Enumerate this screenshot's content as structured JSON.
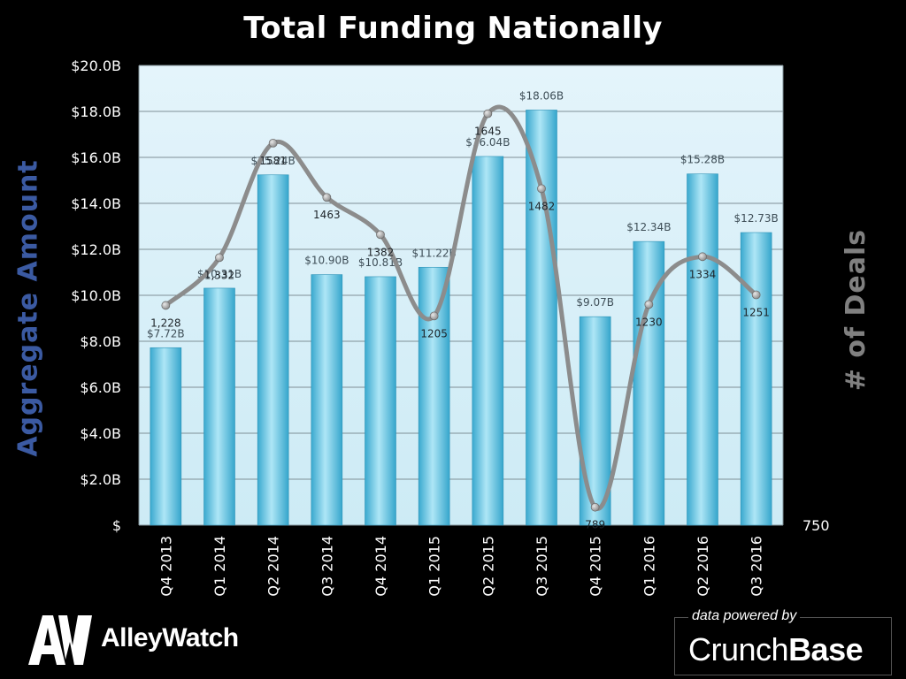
{
  "chart_data": {
    "type": "bar+line",
    "title": "Total Funding Nationally",
    "categories": [
      "Q4 2013",
      "Q1 2014",
      "Q2 2014",
      "Q3 2014",
      "Q4 2014",
      "Q1 2015",
      "Q2 2015",
      "Q3 2015",
      "Q4 2015",
      "Q1 2016",
      "Q2 2016",
      "Q3 2016"
    ],
    "ylabel": "Aggregate  Amount",
    "ylabel_right": "# of Deals",
    "ylim": [
      0,
      20
    ],
    "y_ticks": [
      "$",
      "$2.0B",
      "$4.0B",
      "$6.0B",
      "$8.0B",
      "$10.0B",
      "$12.0B",
      "$14.0B",
      "$16.0B",
      "$18.0B",
      "$20.0B"
    ],
    "y2_tick_label": "750",
    "y2lim": [
      750,
      1750
    ],
    "grid": true,
    "series": [
      {
        "name": "Aggregate Amount",
        "type": "bar",
        "unit": "$B",
        "values": [
          7.72,
          10.31,
          15.24,
          10.9,
          10.81,
          11.22,
          16.04,
          18.06,
          9.07,
          12.34,
          15.28,
          12.73
        ],
        "labels": [
          "$7.72B",
          "$10.31B",
          "$15.24B",
          "$10.90B",
          "$10.81B",
          "$11.22B",
          "$16.04B",
          "$18.06B",
          "$9.07B",
          "$12.34B",
          "$15.28B",
          "$12.73B"
        ]
      },
      {
        "name": "# of Deals",
        "type": "line",
        "axis": "right",
        "values": [
          1228,
          1332,
          1581,
          1463,
          1382,
          1205,
          1645,
          1482,
          789,
          1230,
          1334,
          1251
        ],
        "labels": [
          "1,228",
          "1,332",
          "1581",
          "1463",
          "1382",
          "1205",
          "1645",
          "1482",
          "789",
          "1230",
          "1334",
          "1251"
        ]
      }
    ],
    "colors": {
      "bar": "#5cc3e0",
      "line": "#8c8c8c",
      "plot_bg": "#dff1f8",
      "left_label": "#3b5aa2",
      "right_label": "#808080"
    }
  },
  "branding": {
    "logo_mark": "AW",
    "logo_text": "AlleyWatch",
    "powered_caption": "data powered by",
    "powered_brand_light": "Crunch",
    "powered_brand_bold": "Base"
  }
}
